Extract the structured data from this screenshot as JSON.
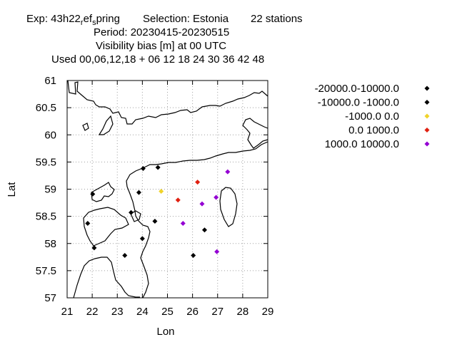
{
  "header": {
    "exp_prefix": "Exp: 43h22",
    "exp_sub1": "r",
    "exp_mid": "ef",
    "exp_sub2": "s",
    "exp_suffix": "pring",
    "selection": "Selection: Estonia",
    "stations": "22 stations",
    "period": "Period: 20230415-20230515",
    "parameter": "Visibility bias [m] at  00 UTC",
    "used": "Used  00,06,12,18  + 06 12 18 24 30 36 42 48"
  },
  "chart_data": {
    "type": "scatter",
    "xlabel": "Lon",
    "ylabel": "Lat",
    "xlim": [
      21,
      29
    ],
    "ylim": [
      57,
      61
    ],
    "xticks": [
      "21",
      "22",
      "23",
      "24",
      "25",
      "26",
      "27",
      "28",
      "29"
    ],
    "yticks": [
      "57",
      "57.5",
      "58",
      "58.5",
      "59",
      "59.5",
      "60",
      "60.5",
      "61"
    ],
    "grid": true,
    "legend_position": "right",
    "series": [
      {
        "name": "-20000.0-10000.0",
        "color": "#000000",
        "points": []
      },
      {
        "name": "-10000.0 -1000.0",
        "color": "#000000",
        "points": [
          [
            24.03,
            59.38
          ],
          [
            24.62,
            59.4
          ],
          [
            22.02,
            58.91
          ],
          [
            23.86,
            58.94
          ],
          [
            23.55,
            58.57
          ],
          [
            21.82,
            58.37
          ],
          [
            24.5,
            58.41
          ],
          [
            26.48,
            58.25
          ],
          [
            24.0,
            58.09
          ],
          [
            22.08,
            57.92
          ],
          [
            23.3,
            57.78
          ],
          [
            26.03,
            57.78
          ]
        ]
      },
      {
        "name": "-1000.0 0.0",
        "color": "#f0d32a",
        "points": [
          [
            24.75,
            58.96
          ]
        ]
      },
      {
        "name": "0.0 1000.0",
        "color": "#e02010",
        "points": [
          [
            26.2,
            59.13
          ],
          [
            25.42,
            58.8
          ]
        ]
      },
      {
        "name": "1000.0 10000.0",
        "color": "#9400d3",
        "points": [
          [
            27.4,
            59.32
          ],
          [
            26.94,
            58.85
          ],
          [
            26.38,
            58.73
          ],
          [
            25.62,
            58.37
          ],
          [
            26.97,
            57.85
          ]
        ]
      }
    ]
  }
}
